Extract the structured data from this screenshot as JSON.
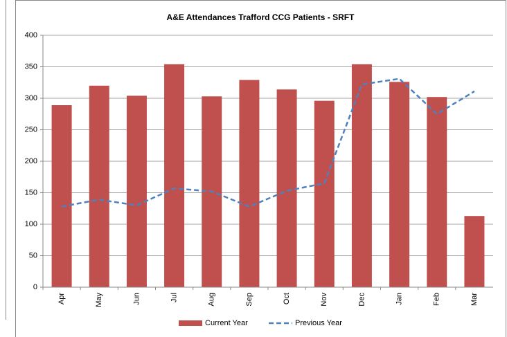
{
  "chart_data": {
    "type": "bar-line",
    "title": "A&E Attendances Trafford CCG Patients - SRFT",
    "categories": [
      "Apr",
      "May",
      "Jun",
      "Jul",
      "Aug",
      "Sep",
      "Oct",
      "Nov",
      "Dec",
      "Jan",
      "Feb",
      "Mar"
    ],
    "series": [
      {
        "name": "Current Year",
        "type": "bar",
        "color": "#c0504d",
        "values": [
          289,
          320,
          304,
          354,
          303,
          329,
          314,
          296,
          354,
          326,
          302,
          113
        ]
      },
      {
        "name": "Previous Year",
        "type": "line",
        "color": "#4f81bd",
        "values": [
          128,
          139,
          130,
          157,
          152,
          128,
          153,
          165,
          322,
          331,
          275,
          311
        ]
      }
    ],
    "ylim": [
      0,
      400
    ],
    "yticks": [
      0,
      50,
      100,
      150,
      200,
      250,
      300,
      350,
      400
    ],
    "grid": true,
    "legend": "bottom"
  }
}
